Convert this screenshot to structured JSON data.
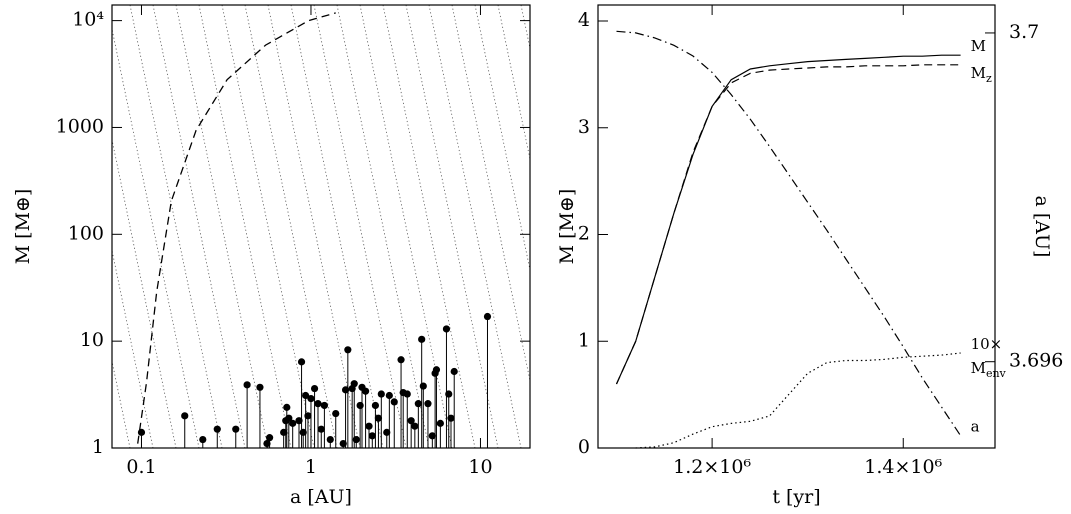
{
  "chart_data": [
    {
      "type": "scatter",
      "xlabel": "a [AU]",
      "ylabel": "M [M⊕]",
      "xscale": "log",
      "yscale": "log",
      "color": "#000000",
      "stems": true,
      "hatch": true,
      "xlim": [
        0.067,
        19.6
      ],
      "ylim": [
        1,
        14000
      ],
      "xticks": [
        0.1,
        1,
        10
      ],
      "yticks": [
        1,
        10,
        100,
        1000,
        {
          "value": 10000,
          "label": "10⁴"
        }
      ],
      "x": [
        0.1,
        0.18,
        0.23,
        0.28,
        0.36,
        0.42,
        0.5,
        0.55,
        0.57,
        0.69,
        0.71,
        0.72,
        0.74,
        0.78,
        0.85,
        0.88,
        0.9,
        0.93,
        0.96,
        1.0,
        1.05,
        1.1,
        1.15,
        1.2,
        1.3,
        1.4,
        1.55,
        1.6,
        1.65,
        1.75,
        1.8,
        1.85,
        1.95,
        2.0,
        2.1,
        2.2,
        2.3,
        2.4,
        2.5,
        2.6,
        2.8,
        2.9,
        3.1,
        3.4,
        3.5,
        3.7,
        3.9,
        4.1,
        4.3,
        4.5,
        4.6,
        4.9,
        5.2,
        5.4,
        5.5,
        5.8,
        6.3,
        6.5,
        6.7,
        7.0,
        11.0
      ],
      "values": [
        1.4,
        2.0,
        1.2,
        1.5,
        1.5,
        3.9,
        3.7,
        1.1,
        1.25,
        1.4,
        1.8,
        2.4,
        1.9,
        1.7,
        1.8,
        6.4,
        1.4,
        3.1,
        2.0,
        2.9,
        3.6,
        2.6,
        1.5,
        2.5,
        1.2,
        2.1,
        1.1,
        3.5,
        8.3,
        3.6,
        4.0,
        1.2,
        2.5,
        3.7,
        3.4,
        1.6,
        1.3,
        2.5,
        1.9,
        3.2,
        1.4,
        3.1,
        2.7,
        6.7,
        3.3,
        3.2,
        1.8,
        1.6,
        2.6,
        10.4,
        3.8,
        2.6,
        1.3,
        5.0,
        5.4,
        1.7,
        13.0,
        3.2,
        1.9,
        5.2,
        17.0
      ],
      "curve": {
        "dash": "dashed",
        "x": [
          0.095,
          0.107,
          0.123,
          0.15,
          0.21,
          0.32,
          0.54,
          0.97,
          1.4
        ],
        "values": [
          1.1,
          4.1,
          29,
          204,
          940,
          2800,
          5900,
          10000,
          11800
        ]
      }
    },
    {
      "type": "line",
      "xlabel": "t [yr]",
      "ylabel": "M [M⊕]",
      "y2label": "a [AU]",
      "xlim": [
        1080600,
        1496000
      ],
      "ylim": [
        0,
        4.15
      ],
      "y2lim": [
        3.69495,
        3.70034
      ],
      "xticks": [
        {
          "value": 1200000,
          "label": "1.2×10⁶"
        },
        {
          "value": 1400000,
          "label": "1.4×10⁶"
        }
      ],
      "yticks": [
        0,
        1,
        2,
        3,
        4
      ],
      "y2ticks": [
        3.696,
        3.7
      ],
      "x": [
        1100000,
        1120000,
        1140000,
        1160000,
        1180000,
        1200000,
        1220000,
        1240000,
        1260000,
        1280000,
        1300000,
        1320000,
        1340000,
        1360000,
        1380000,
        1400000,
        1420000,
        1440000,
        1460000
      ],
      "series": [
        {
          "name": "M",
          "dash": "solid",
          "color": "#000000",
          "values": [
            0.6,
            1.0,
            1.6,
            2.2,
            2.75,
            3.2,
            3.45,
            3.55,
            3.58,
            3.6,
            3.62,
            3.63,
            3.64,
            3.65,
            3.66,
            3.67,
            3.67,
            3.68,
            3.68
          ]
        },
        {
          "name": "M",
          "subscript": "z",
          "dash": "dashed",
          "color": "#000000",
          "values": [
            0.6,
            1.0,
            1.6,
            2.2,
            2.77,
            3.2,
            3.42,
            3.51,
            3.54,
            3.55,
            3.56,
            3.57,
            3.57,
            3.58,
            3.58,
            3.58,
            3.59,
            3.59,
            3.59
          ]
        },
        {
          "prefix": "10×",
          "name": "M",
          "subscript": "env",
          "dash": "dotted",
          "color": "#000000",
          "values": [
            null,
            0,
            0.01,
            0.05,
            0.13,
            0.2,
            0.23,
            0.25,
            0.3,
            0.5,
            0.7,
            0.8,
            0.82,
            0.82,
            0.83,
            0.85,
            0.86,
            0.87,
            0.89
          ]
        },
        {
          "name": "a",
          "axis": "y2",
          "dash": "dashdot",
          "color": "#000000",
          "values": [
            3.70002,
            3.7,
            3.69994,
            3.69985,
            3.69972,
            3.69952,
            3.69925,
            3.69895,
            3.69862,
            3.69828,
            3.69794,
            3.6976,
            3.69725,
            3.6969,
            3.69655,
            3.69618,
            3.6958,
            3.69545,
            3.6951
          ]
        }
      ]
    }
  ]
}
